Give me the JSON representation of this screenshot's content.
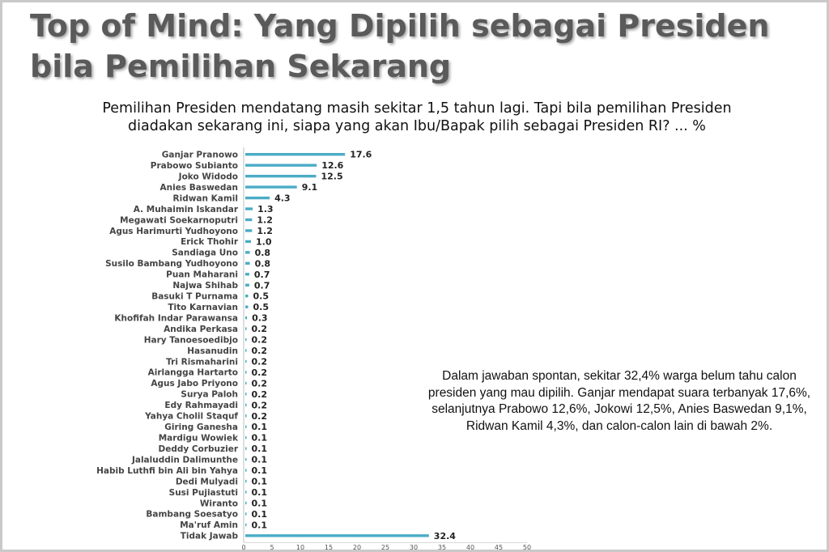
{
  "header": {
    "title_line1": "Top of Mind: Yang Dipilih sebagai Presiden",
    "title_line2": "bila Pemilihan Sekarang",
    "question_line1": "Pemilihan Presiden mendatang masih sekitar 1,5 tahun lagi. Tapi bila pemilihan Presiden",
    "question_line2": "diadakan sekarang ini, siapa yang akan Ibu/Bapak pilih sebagai Presiden RI? ... %"
  },
  "note": {
    "text": "Dalam jawaban spontan, sekitar 32,4% warga belum tahu calon presiden yang mau dipilih. Ganjar mendapat suara terbanyak 17,6%, selanjutnya Prabowo 12,6%, Jokowi 12,5%, Anies Baswedan 9,1%, Ridwan Kamil 4,3%, dan calon-calon lain di bawah 2%."
  },
  "colors": {
    "bar": "#4bacc6",
    "title": "#5a5a5a"
  },
  "chart_data": {
    "type": "bar",
    "orientation": "horizontal",
    "categories": [
      "Ganjar Pranowo",
      "Prabowo Subianto",
      "Joko Widodo",
      "Anies Baswedan",
      "Ridwan Kamil",
      "A. Muhaimin Iskandar",
      "Megawati Soekarnoputri",
      "Agus Harimurti Yudhoyono",
      "Erick Thohir",
      "Sandiaga Uno",
      "Susilo Bambang Yudhoyono",
      "Puan Maharani",
      "Najwa Shihab",
      "Basuki T Purnama",
      "Tito Karnavian",
      "Khofifah Indar Parawansa",
      "Andika Perkasa",
      "Hary Tanoesoedibjo",
      "Hasanudin",
      "Tri Rismaharini",
      "Airlangga Hartarto",
      "Agus Jabo Priyono",
      "Surya Paloh",
      "Edy Rahmayadi",
      "Yahya Cholil Staquf",
      "Giring Ganesha",
      "Mardigu Wowiek",
      "Deddy Corbuzier",
      "Jalaluddin Dalimunthe",
      "Habib Luthfi bin Ali bin Yahya",
      "Dedi Mulyadi",
      "Susi Pujiastuti",
      "Wiranto",
      "Bambang Soesatyo",
      "Ma'ruf Amin",
      "Tidak Jawab"
    ],
    "values": [
      17.6,
      12.6,
      12.5,
      9.1,
      4.3,
      1.3,
      1.2,
      1.2,
      1.0,
      0.8,
      0.8,
      0.7,
      0.7,
      0.5,
      0.5,
      0.3,
      0.2,
      0.2,
      0.2,
      0.2,
      0.2,
      0.2,
      0.2,
      0.2,
      0.2,
      0.1,
      0.1,
      0.1,
      0.1,
      0.1,
      0.1,
      0.1,
      0.1,
      0.1,
      0.1,
      32.4
    ],
    "value_labels": [
      "17.6",
      "12.6",
      "12.5",
      "9.1",
      "4.3",
      "1.3",
      "1.2",
      "1.2",
      "1.0",
      "0.8",
      "0.8",
      "0.7",
      "0.7",
      "0.5",
      "0.5",
      "0.3",
      "0.2",
      "0.2",
      "0.2",
      "0.2",
      "0.2",
      "0.2",
      "0.2",
      "0.2",
      "0.2",
      "0.1",
      "0.1",
      "0.1",
      "0.1",
      "0.1",
      "0.1",
      "0.1",
      "0.1",
      "0.1",
      "0.1",
      "32.4"
    ],
    "xlim": [
      0,
      50
    ],
    "xticks": [
      0,
      5,
      10,
      15,
      20,
      25,
      30,
      35,
      40,
      45,
      50
    ],
    "xtick_labels": [
      "0",
      "5",
      "10",
      "15",
      "20",
      "25",
      "30",
      "35",
      "40",
      "45",
      "50"
    ],
    "grid": false,
    "legend": "none"
  }
}
